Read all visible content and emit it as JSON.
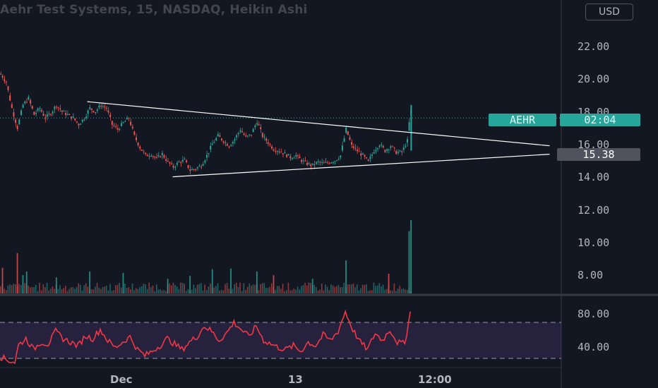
{
  "header": {
    "title": "Aehr Test Systems, 15, NASDAQ, Heikin Ashi",
    "currency": "USD"
  },
  "tags": {
    "symbol": "AEHR",
    "countdown": "02:04",
    "level": "15.38"
  },
  "colors": {
    "background": "#131722",
    "up": "#26a69a",
    "down": "#ef5350",
    "trendline": "#ffffff",
    "rsi_line": "#f23645",
    "rsi_band": "#7e57c2"
  },
  "chart_data": [
    {
      "type": "candlestick",
      "title": "Aehr Test Systems, 15, NASDAQ, Heikin Ashi",
      "ylim": [
        6.8,
        24
      ],
      "y_ticks": [
        "22.00",
        "20.00",
        "18.00",
        "16.00",
        "14.00",
        "12.00",
        "10.00",
        "8.00"
      ],
      "y_tick_values": [
        22,
        20,
        18,
        16,
        14,
        12,
        10,
        8
      ],
      "x_ticks": [
        "Dec",
        "13",
        "12:00"
      ],
      "x_tick_index": [
        60,
        156,
        236
      ],
      "ohlc_close_path": [
        [
          0,
          20.3
        ],
        [
          3,
          19.8
        ],
        [
          6,
          18.2
        ],
        [
          9,
          17.0
        ],
        [
          12,
          18.4
        ],
        [
          15,
          18.8
        ],
        [
          18,
          17.8
        ],
        [
          21,
          18.2
        ],
        [
          24,
          17.6
        ],
        [
          27,
          17.9
        ],
        [
          30,
          18.4
        ],
        [
          33,
          18.0
        ],
        [
          36,
          17.8
        ],
        [
          39,
          17.6
        ],
        [
          42,
          17.2
        ],
        [
          45,
          17.6
        ],
        [
          48,
          18.2
        ],
        [
          51,
          18.0
        ],
        [
          54,
          18.4
        ],
        [
          57,
          18.2
        ],
        [
          60,
          17.2
        ],
        [
          63,
          16.9
        ],
        [
          66,
          17.3
        ],
        [
          69,
          17.6
        ],
        [
          72,
          16.5
        ],
        [
          75,
          15.8
        ],
        [
          78,
          15.3
        ],
        [
          81,
          15.4
        ],
        [
          84,
          15.1
        ],
        [
          87,
          15.4
        ],
        [
          90,
          14.9
        ],
        [
          93,
          14.6
        ],
        [
          96,
          14.9
        ],
        [
          99,
          15.0
        ],
        [
          102,
          14.4
        ],
        [
          105,
          14.5
        ],
        [
          108,
          14.7
        ],
        [
          111,
          15.3
        ],
        [
          114,
          16.0
        ],
        [
          117,
          16.5
        ],
        [
          120,
          16.2
        ],
        [
          123,
          15.9
        ],
        [
          126,
          16.3
        ],
        [
          129,
          16.9
        ],
        [
          132,
          16.4
        ],
        [
          135,
          16.6
        ],
        [
          138,
          17.4
        ],
        [
          141,
          16.5
        ],
        [
          144,
          16.1
        ],
        [
          147,
          15.7
        ],
        [
          150,
          15.6
        ],
        [
          153,
          15.4
        ],
        [
          156,
          15.2
        ],
        [
          159,
          15.3
        ],
        [
          162,
          15.0
        ],
        [
          165,
          14.8
        ],
        [
          168,
          14.7
        ],
        [
          171,
          14.9
        ],
        [
          174,
          14.8
        ],
        [
          177,
          14.9
        ],
        [
          180,
          15.0
        ],
        [
          183,
          15.3
        ],
        [
          186,
          16.9
        ],
        [
          189,
          15.9
        ],
        [
          192,
          15.6
        ],
        [
          195,
          15.3
        ],
        [
          198,
          14.9
        ],
        [
          201,
          15.6
        ],
        [
          204,
          16.0
        ],
        [
          207,
          15.6
        ],
        [
          210,
          15.9
        ],
        [
          213,
          15.5
        ],
        [
          216,
          15.5
        ],
        [
          219,
          16.2
        ],
        [
          220,
          17.3
        ],
        [
          221,
          18.1
        ]
      ],
      "last_price": 18.1,
      "trendlines": [
        {
          "from": [
            47,
            18.6
          ],
          "to": [
            296,
            15.9
          ]
        },
        {
          "from": [
            93,
            14.0
          ],
          "to": [
            296,
            15.38
          ]
        }
      ]
    },
    {
      "type": "bar",
      "title": "Volume",
      "spikes": [
        {
          "i": 1,
          "v": 0.35
        },
        {
          "i": 9,
          "v": 0.55
        },
        {
          "i": 12,
          "v": 0.25
        },
        {
          "i": 14,
          "v": 0.3
        },
        {
          "i": 30,
          "v": 0.22
        },
        {
          "i": 48,
          "v": 0.3
        },
        {
          "i": 66,
          "v": 0.28
        },
        {
          "i": 90,
          "v": 0.2
        },
        {
          "i": 102,
          "v": 0.24
        },
        {
          "i": 114,
          "v": 0.33
        },
        {
          "i": 124,
          "v": 0.34
        },
        {
          "i": 138,
          "v": 0.3
        },
        {
          "i": 147,
          "v": 0.25
        },
        {
          "i": 168,
          "v": 0.2
        },
        {
          "i": 186,
          "v": 0.45
        },
        {
          "i": 209,
          "v": 0.27
        },
        {
          "i": 220,
          "v": 0.85
        },
        {
          "i": 221,
          "v": 1.0
        }
      ]
    },
    {
      "type": "line",
      "title": "RSI",
      "y_ticks": [
        "80.00",
        "40.00"
      ],
      "y_tick_values": [
        80,
        40
      ],
      "ylim": [
        22,
        90
      ],
      "bands": [
        70,
        30
      ],
      "points": [
        [
          0,
          32
        ],
        [
          4,
          28
        ],
        [
          8,
          26
        ],
        [
          10,
          45
        ],
        [
          14,
          52
        ],
        [
          18,
          40
        ],
        [
          22,
          48
        ],
        [
          26,
          46
        ],
        [
          30,
          60
        ],
        [
          34,
          52
        ],
        [
          38,
          48
        ],
        [
          42,
          44
        ],
        [
          46,
          55
        ],
        [
          50,
          52
        ],
        [
          54,
          62
        ],
        [
          58,
          50
        ],
        [
          62,
          42
        ],
        [
          66,
          48
        ],
        [
          70,
          54
        ],
        [
          74,
          40
        ],
        [
          78,
          33
        ],
        [
          82,
          38
        ],
        [
          86,
          44
        ],
        [
          90,
          52
        ],
        [
          94,
          46
        ],
        [
          98,
          40
        ],
        [
          102,
          48
        ],
        [
          106,
          54
        ],
        [
          110,
          66
        ],
        [
          114,
          60
        ],
        [
          118,
          50
        ],
        [
          122,
          58
        ],
        [
          126,
          70
        ],
        [
          130,
          62
        ],
        [
          134,
          54
        ],
        [
          138,
          66
        ],
        [
          142,
          50
        ],
        [
          146,
          46
        ],
        [
          150,
          42
        ],
        [
          154,
          40
        ],
        [
          158,
          44
        ],
        [
          162,
          38
        ],
        [
          166,
          48
        ],
        [
          170,
          44
        ],
        [
          174,
          56
        ],
        [
          178,
          50
        ],
        [
          182,
          60
        ],
        [
          186,
          82
        ],
        [
          190,
          62
        ],
        [
          194,
          48
        ],
        [
          198,
          40
        ],
        [
          202,
          58
        ],
        [
          206,
          50
        ],
        [
          210,
          62
        ],
        [
          214,
          48
        ],
        [
          218,
          46
        ],
        [
          221,
          82
        ]
      ]
    }
  ]
}
